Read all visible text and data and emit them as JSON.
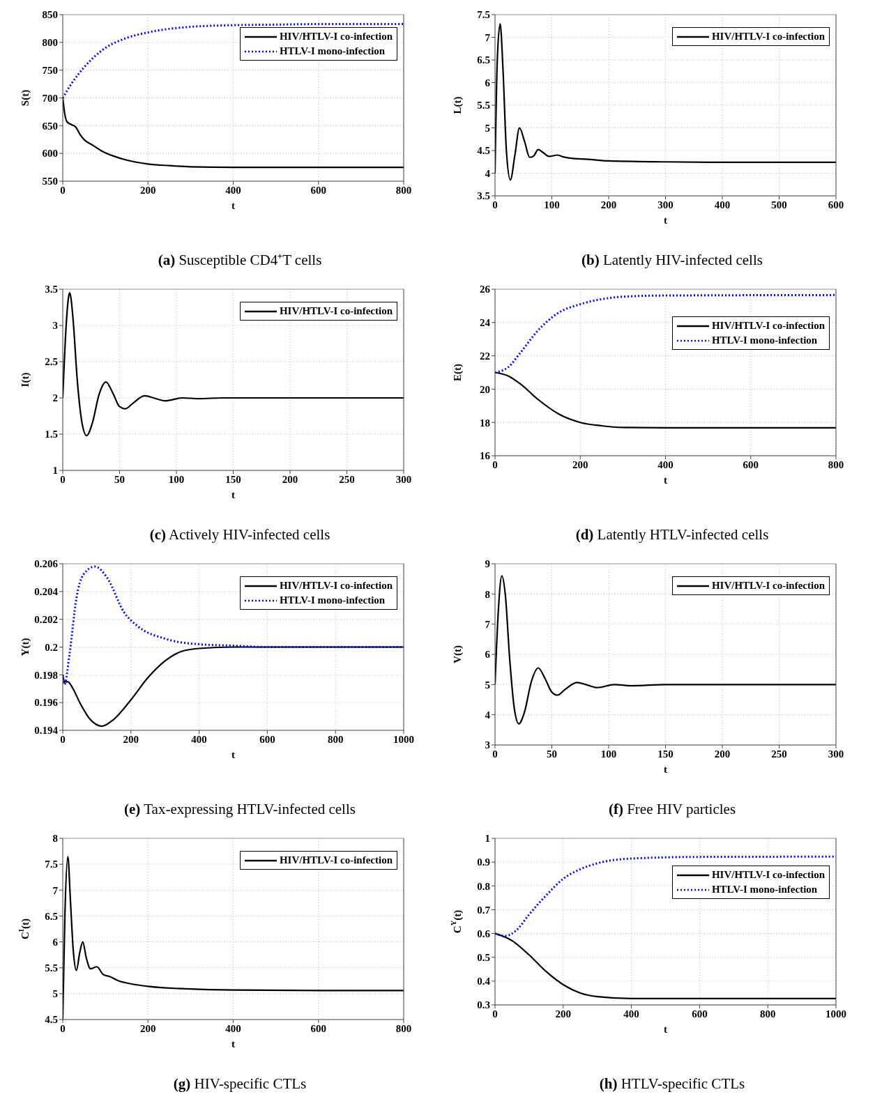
{
  "chart_data": [
    {
      "type": "line",
      "title": "(a) Susceptible CD4⁺T cells",
      "xlabel": "t",
      "ylabel": "S(t)",
      "xlim": [
        0,
        800
      ],
      "xticks": [
        0,
        200,
        400,
        600,
        800
      ],
      "ylim": [
        550,
        850
      ],
      "yticks": [
        550,
        600,
        650,
        700,
        750,
        800,
        850
      ],
      "grid": true,
      "legend": "top right",
      "series": [
        {
          "name": "HIV/HTLV-I co-infection",
          "color": "#000000",
          "line_style": "solid",
          "x": [
            0,
            5,
            10,
            20,
            30,
            40,
            50,
            70,
            90,
            120,
            150,
            200,
            250,
            300,
            400,
            500,
            600,
            800
          ],
          "values": [
            700,
            670,
            657,
            652,
            648,
            635,
            625,
            615,
            605,
            595,
            588,
            581,
            578,
            576,
            575,
            575,
            575,
            575
          ]
        },
        {
          "name": "HTLV-I mono-infection",
          "color": "#0000ff",
          "line_style": "dotted",
          "x": [
            0,
            20,
            50,
            100,
            150,
            200,
            300,
            400,
            500,
            600,
            800
          ],
          "values": [
            700,
            725,
            755,
            790,
            808,
            818,
            828,
            831,
            832,
            833,
            833
          ]
        }
      ]
    },
    {
      "type": "line",
      "title": "(b) Latently HIV-infected cells",
      "xlabel": "t",
      "ylabel": "L(t)",
      "xlim": [
        0,
        600
      ],
      "xticks": [
        0,
        100,
        200,
        300,
        400,
        500,
        600
      ],
      "ylim": [
        3.5,
        7.5
      ],
      "yticks": [
        3.5,
        4,
        4.5,
        5,
        5.5,
        6,
        6.5,
        7,
        7.5
      ],
      "grid": true,
      "legend": "top right",
      "series": [
        {
          "name": "HIV/HTLV-I co-infection",
          "color": "#000000",
          "line_style": "solid",
          "x": [
            0,
            4,
            9,
            14,
            20,
            27,
            35,
            43,
            52,
            61,
            68,
            76,
            85,
            95,
            110,
            120,
            140,
            160,
            200,
            300,
            400,
            600
          ],
          "values": [
            4,
            6.5,
            7.3,
            6.3,
            4.5,
            3.85,
            4.4,
            5.0,
            4.7,
            4.35,
            4.38,
            4.52,
            4.45,
            4.37,
            4.4,
            4.36,
            4.32,
            4.31,
            4.27,
            4.25,
            4.24,
            4.24
          ]
        }
      ]
    },
    {
      "type": "line",
      "title": "(c) Actively HIV-infected cells",
      "xlabel": "t",
      "ylabel": "I(t)",
      "xlim": [
        0,
        300
      ],
      "xticks": [
        0,
        50,
        100,
        150,
        200,
        250,
        300
      ],
      "ylim": [
        1,
        3.5
      ],
      "yticks": [
        1,
        1.5,
        2,
        2.5,
        3,
        3.5
      ],
      "grid": true,
      "legend": "top right",
      "series": [
        {
          "name": "HIV/HTLV-I co-infection",
          "color": "#000000",
          "line_style": "solid",
          "x": [
            0,
            3,
            5,
            6,
            7,
            9,
            13,
            17,
            21,
            26,
            32,
            38,
            44,
            50,
            55,
            62,
            72,
            80,
            90,
            105,
            120,
            140,
            160,
            200,
            300
          ],
          "values": [
            2,
            3.0,
            3.38,
            3.45,
            3.4,
            3.1,
            2.2,
            1.65,
            1.48,
            1.65,
            2.05,
            2.22,
            2.07,
            1.88,
            1.85,
            1.93,
            2.03,
            2.0,
            1.96,
            2.0,
            1.99,
            2.0,
            2.0,
            2.0,
            2.0
          ]
        }
      ]
    },
    {
      "type": "line",
      "title": "(d) Latently HTLV-infected cells",
      "xlabel": "t",
      "ylabel": "E(t)",
      "xlim": [
        0,
        800
      ],
      "xticks": [
        0,
        200,
        400,
        600,
        800
      ],
      "ylim": [
        16,
        26
      ],
      "yticks": [
        16,
        18,
        20,
        22,
        24,
        26
      ],
      "grid": true,
      "legend": "right",
      "series": [
        {
          "name": "HIV/HTLV-I co-infection",
          "color": "#000000",
          "line_style": "solid",
          "x": [
            0,
            30,
            60,
            100,
            150,
            200,
            250,
            300,
            400,
            800
          ],
          "values": [
            21,
            20.8,
            20.3,
            19.4,
            18.5,
            18.0,
            17.8,
            17.7,
            17.68,
            17.68
          ]
        },
        {
          "name": "HTLV-I mono-infection",
          "color": "#0000ff",
          "line_style": "dotted",
          "x": [
            0,
            30,
            60,
            100,
            150,
            200,
            250,
            300,
            400,
            800
          ],
          "values": [
            21,
            21.3,
            22.2,
            23.5,
            24.6,
            25.1,
            25.4,
            25.55,
            25.62,
            25.65
          ]
        }
      ]
    },
    {
      "type": "line",
      "title": "(e) Tax-expressing HTLV-infected cells",
      "xlabel": "t",
      "ylabel": "Y(t)",
      "xlim": [
        0,
        1000
      ],
      "xticks": [
        0,
        200,
        400,
        600,
        800,
        1000
      ],
      "ylim": [
        0.194,
        0.206
      ],
      "yticks": [
        0.194,
        0.196,
        0.198,
        0.2,
        0.202,
        0.204,
        0.206
      ],
      "grid": true,
      "legend": "top right",
      "series": [
        {
          "name": "HIV/HTLV-I co-infection",
          "color": "#000000",
          "line_style": "solid",
          "x": [
            0,
            5,
            15,
            30,
            50,
            80,
            115,
            150,
            200,
            250,
            300,
            350,
            400,
            500,
            1000
          ],
          "values": [
            0.198,
            0.1975,
            0.1975,
            0.197,
            0.196,
            0.1948,
            0.1943,
            0.1948,
            0.1962,
            0.1978,
            0.199,
            0.1997,
            0.1999,
            0.2,
            0.2
          ]
        },
        {
          "name": "HTLV-I mono-infection",
          "color": "#0000ff",
          "line_style": "dotted",
          "x": [
            0,
            5,
            20,
            40,
            60,
            95,
            130,
            180,
            220,
            300,
            400,
            500,
            600,
            1000
          ],
          "values": [
            0.198,
            0.1973,
            0.1995,
            0.2035,
            0.2052,
            0.2058,
            0.205,
            0.2025,
            0.2015,
            0.2006,
            0.2002,
            0.2001,
            0.2,
            0.2
          ]
        }
      ]
    },
    {
      "type": "line",
      "title": "(f) Free HIV particles",
      "xlabel": "t",
      "ylabel": "V(t)",
      "xlim": [
        0,
        300
      ],
      "xticks": [
        0,
        50,
        100,
        150,
        200,
        250,
        300
      ],
      "ylim": [
        3,
        9
      ],
      "yticks": [
        3,
        4,
        5,
        6,
        7,
        8,
        9
      ],
      "grid": true,
      "legend": "top right",
      "series": [
        {
          "name": "HIV/HTLV-I co-infection",
          "color": "#000000",
          "line_style": "solid",
          "x": [
            0,
            3,
            6,
            9,
            13,
            17,
            21,
            26,
            32,
            38,
            44,
            50,
            55,
            62,
            72,
            80,
            90,
            105,
            120,
            150,
            300
          ],
          "values": [
            5,
            7.5,
            8.6,
            8.0,
            5.8,
            4.2,
            3.7,
            4.1,
            5.1,
            5.55,
            5.2,
            4.75,
            4.65,
            4.85,
            5.07,
            5.0,
            4.9,
            5.0,
            4.96,
            5.0,
            5.0
          ]
        }
      ]
    },
    {
      "type": "line",
      "title": "(g) HIV-specific CTLs",
      "xlabel": "t",
      "ylabel": "C$^{I}$(t)",
      "xlim": [
        0,
        800
      ],
      "xticks": [
        0,
        200,
        400,
        600,
        800
      ],
      "ylim": [
        4.5,
        8
      ],
      "yticks": [
        4.5,
        5,
        5.5,
        6,
        6.5,
        7,
        7.5,
        8
      ],
      "grid": true,
      "legend": "top right",
      "series": [
        {
          "name": "HIV/HTLV-I co-infection",
          "color": "#000000",
          "line_style": "solid",
          "x": [
            0,
            5,
            12,
            18,
            25,
            32,
            40,
            47,
            55,
            65,
            80,
            95,
            110,
            130,
            160,
            200,
            300,
            400,
            600,
            800
          ],
          "values": [
            4.5,
            6.5,
            7.65,
            6.8,
            5.8,
            5.45,
            5.8,
            6.0,
            5.7,
            5.48,
            5.52,
            5.37,
            5.33,
            5.25,
            5.19,
            5.14,
            5.09,
            5.07,
            5.06,
            5.06
          ]
        }
      ]
    },
    {
      "type": "line",
      "title": "(h) HTLV-specific CTLs",
      "xlabel": "t",
      "ylabel": "C$^{Y}$(t)",
      "xlim": [
        0,
        1000
      ],
      "xticks": [
        0,
        200,
        400,
        600,
        800,
        1000
      ],
      "ylim": [
        0.3,
        1
      ],
      "yticks": [
        0.3,
        0.4,
        0.5,
        0.6,
        0.7,
        0.8,
        0.9,
        1
      ],
      "grid": true,
      "legend": "right",
      "series": [
        {
          "name": "HIV/HTLV-I co-infection",
          "color": "#000000",
          "line_style": "solid",
          "x": [
            0,
            50,
            100,
            150,
            200,
            250,
            300,
            400,
            1000
          ],
          "values": [
            0.6,
            0.57,
            0.51,
            0.44,
            0.385,
            0.35,
            0.335,
            0.327,
            0.327
          ]
        },
        {
          "name": "HTLV-I mono-infection",
          "color": "#0000ff",
          "line_style": "dotted",
          "x": [
            0,
            30,
            60,
            100,
            150,
            200,
            250,
            300,
            400,
            600,
            1000
          ],
          "values": [
            0.6,
            0.59,
            0.61,
            0.68,
            0.76,
            0.83,
            0.87,
            0.895,
            0.915,
            0.922,
            0.923
          ]
        }
      ]
    }
  ]
}
